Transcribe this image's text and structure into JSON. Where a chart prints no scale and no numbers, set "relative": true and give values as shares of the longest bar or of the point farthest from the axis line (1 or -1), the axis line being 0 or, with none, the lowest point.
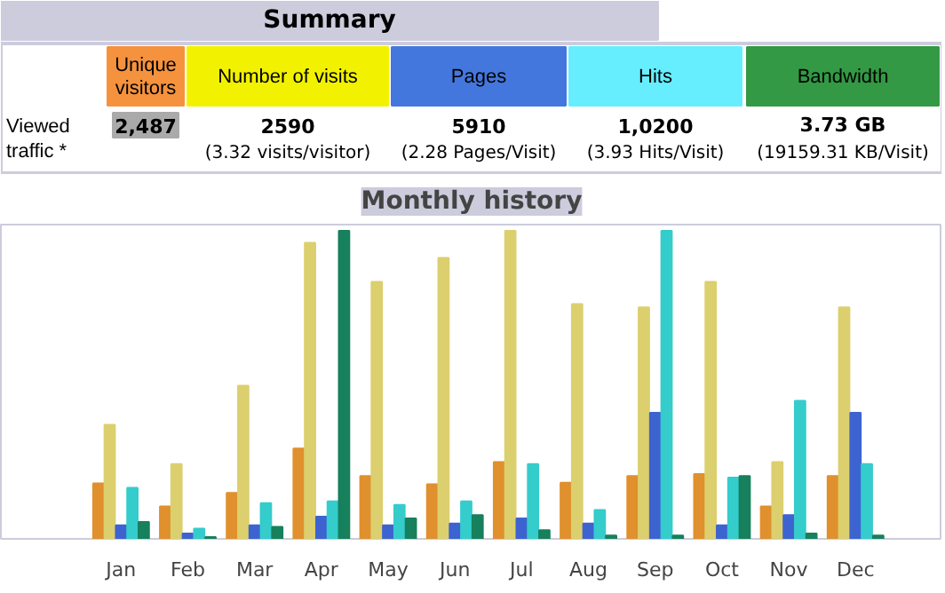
{
  "chart_data": [
    {
      "type": "other",
      "title": "Summary",
      "categories": [
        "Unique visitors",
        "Number of visits",
        "Pages",
        "Hits",
        "Bandwidth"
      ],
      "colors": [
        "#f5923e",
        "#f2f200",
        "#4477dd",
        "#66eeff",
        "#339944"
      ],
      "annotations": [
        "Viewed traffic *",
        "2,487",
        "2590",
        "(3.32 visits/visitor)",
        "5910",
        "(2.28 Pages/Visit)",
        "1,0200",
        "(3.93 Hits/Visit)",
        "3.73 GB",
        "(19159.31 KB/Visit)"
      ]
    },
    {
      "type": "bar",
      "title": "Monthly history",
      "relative": true,
      "grid": false,
      "categories": [
        "Jan",
        "Feb",
        "Mar",
        "Apr",
        "May",
        "Jun",
        "Jul",
        "Aug",
        "Sep",
        "Oct",
        "Nov",
        "Dec"
      ],
      "series": [
        {
          "color": "#e0902c",
          "values": [
            0.18,
            0.105,
            0.149,
            0.293,
            0.204,
            0.177,
            0.249,
            0.182,
            0.204,
            0.21,
            0.105,
            0.204
          ]
        },
        {
          "color": "#dccf6e",
          "values": [
            0.37,
            0.243,
            0.497,
            0.961,
            0.834,
            0.912,
            1.0,
            0.762,
            0.751,
            0.834,
            0.249,
            0.751
          ]
        },
        {
          "color": "#3d63d0",
          "values": [
            0.044,
            0.017,
            0.044,
            0.072,
            0.044,
            0.05,
            0.066,
            0.05,
            0.409,
            0.044,
            0.077,
            0.409
          ]
        },
        {
          "color": "#35cccc",
          "values": [
            0.166,
            0.033,
            0.116,
            0.122,
            0.11,
            0.122,
            0.243,
            0.094,
            1.0,
            0.199,
            0.448,
            0.243
          ]
        },
        {
          "color": "#17805c",
          "values": [
            0.055,
            0.006,
            0.039,
            1.0,
            0.066,
            0.077,
            0.028,
            0.011,
            0.011,
            0.204,
            0.017,
            0.011
          ]
        }
      ]
    }
  ]
}
